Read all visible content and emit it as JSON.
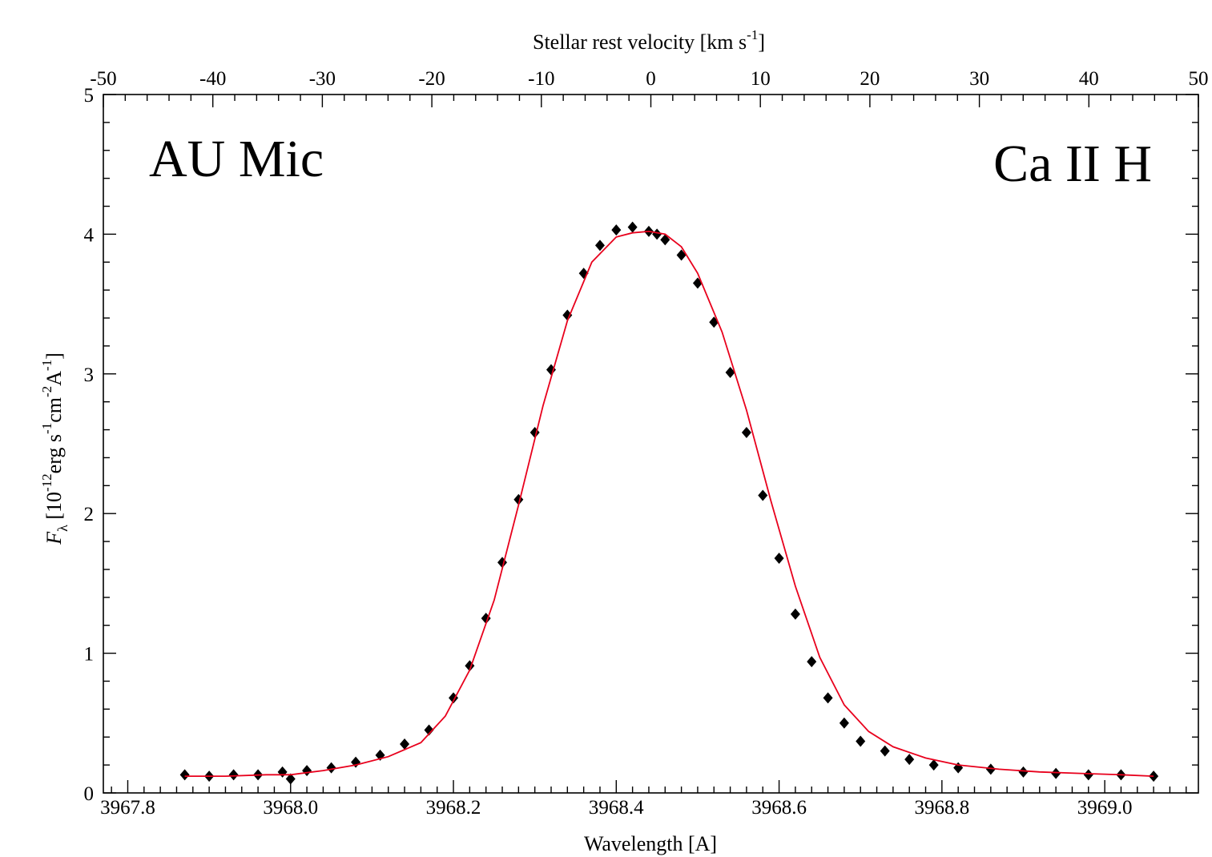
{
  "chart_data": {
    "type": "scatter",
    "title": "",
    "labels": {
      "star": "AU Mic",
      "line": "Ca II H"
    },
    "xlabel": "Wavelength [A]",
    "x2label": "Stellar rest velocity [km s^-1]",
    "ylabel": "F_λ [10^-12 erg s^-1 cm^-2 A^-1]",
    "xlim": [
      3967.77,
      3969.115
    ],
    "ylim": [
      0,
      5
    ],
    "x2lim": [
      -50,
      50
    ],
    "xticks": [
      "3967.8",
      "3968.0",
      "3968.2",
      "3968.4",
      "3968.6",
      "3968.8",
      "3969.0"
    ],
    "yticks": [
      "0",
      "1",
      "2",
      "3",
      "4",
      "5"
    ],
    "x2ticks": [
      "-50",
      "-40",
      "-30",
      "-20",
      "-10",
      "0",
      "10",
      "20",
      "30",
      "40",
      "50"
    ],
    "grid": false,
    "legend": "none",
    "colors": {
      "data": "#000000",
      "fit": "#e8001c"
    },
    "series": [
      {
        "role": "observed",
        "marker": "diamond",
        "x": [
          3967.87,
          3967.9,
          3967.93,
          3967.96,
          3967.99,
          3968.0,
          3968.02,
          3968.05,
          3968.08,
          3968.11,
          3968.14,
          3968.17,
          3968.2,
          3968.22,
          3968.24,
          3968.26,
          3968.28,
          3968.3,
          3968.32,
          3968.34,
          3968.36,
          3968.38,
          3968.4,
          3968.42,
          3968.44,
          3968.45,
          3968.46,
          3968.48,
          3968.5,
          3968.52,
          3968.54,
          3968.56,
          3968.58,
          3968.6,
          3968.62,
          3968.64,
          3968.66,
          3968.68,
          3968.7,
          3968.73,
          3968.76,
          3968.79,
          3968.82,
          3968.86,
          3968.9,
          3968.94,
          3968.98,
          3969.02,
          3969.06
        ],
        "y": [
          0.13,
          0.12,
          0.13,
          0.13,
          0.15,
          0.1,
          0.16,
          0.18,
          0.22,
          0.27,
          0.35,
          0.45,
          0.68,
          0.91,
          1.25,
          1.65,
          2.1,
          2.58,
          3.03,
          3.42,
          3.72,
          3.92,
          4.03,
          4.05,
          4.02,
          4.0,
          3.96,
          3.85,
          3.65,
          3.37,
          3.01,
          2.58,
          2.13,
          1.68,
          1.28,
          0.94,
          0.68,
          0.5,
          0.37,
          0.3,
          0.24,
          0.2,
          0.18,
          0.17,
          0.15,
          0.14,
          0.13,
          0.13,
          0.12
        ]
      },
      {
        "role": "fit",
        "x": [
          3967.87,
          3967.92,
          3967.97,
          3968.0,
          3968.04,
          3968.08,
          3968.12,
          3968.16,
          3968.19,
          3968.22,
          3968.25,
          3968.28,
          3968.31,
          3968.34,
          3968.37,
          3968.4,
          3968.42,
          3968.44,
          3968.46,
          3968.48,
          3968.5,
          3968.53,
          3968.56,
          3968.59,
          3968.62,
          3968.65,
          3968.68,
          3968.71,
          3968.74,
          3968.78,
          3968.82,
          3968.87,
          3968.92,
          3968.97,
          3969.02,
          3969.06
        ],
        "y": [
          0.12,
          0.12,
          0.13,
          0.13,
          0.16,
          0.2,
          0.26,
          0.36,
          0.55,
          0.88,
          1.38,
          2.06,
          2.77,
          3.38,
          3.8,
          3.98,
          4.01,
          4.02,
          4.0,
          3.91,
          3.72,
          3.3,
          2.74,
          2.09,
          1.48,
          0.97,
          0.63,
          0.44,
          0.33,
          0.25,
          0.2,
          0.17,
          0.15,
          0.14,
          0.13,
          0.12
        ]
      }
    ]
  }
}
